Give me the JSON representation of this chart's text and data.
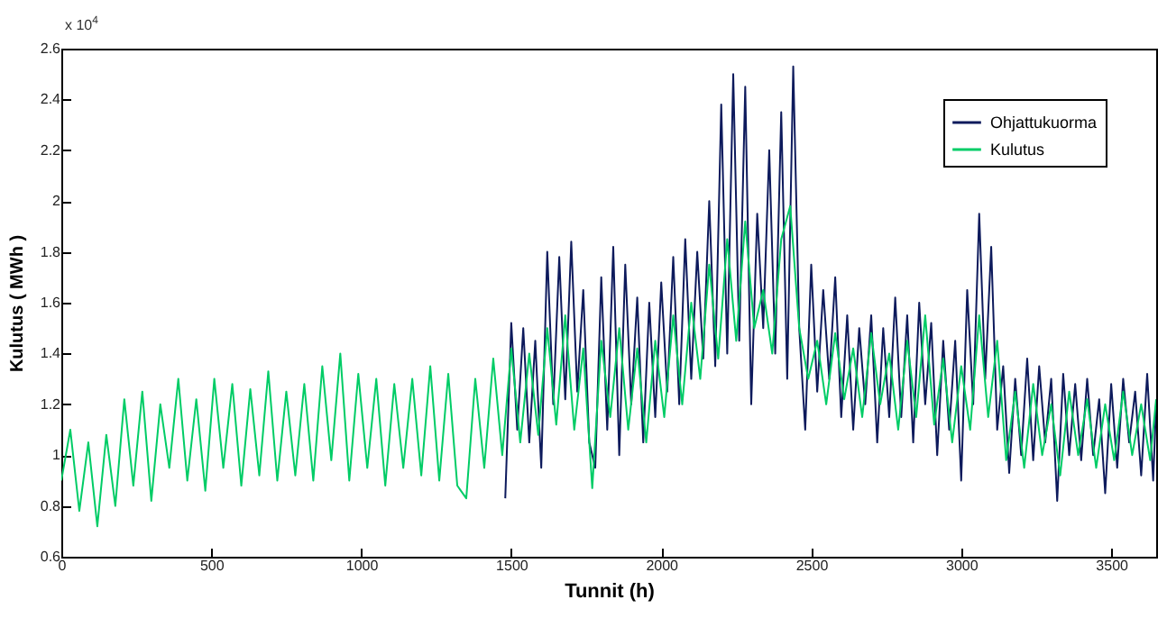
{
  "chart_data": {
    "type": "line",
    "xlabel": "Tunnit (h)",
    "ylabel": "Kulutus ( MWh )",
    "annotations": [
      "x 10$^{4}$"
    ],
    "xlim": [
      0,
      3650
    ],
    "xticks": [
      0,
      500,
      1000,
      1500,
      2000,
      2500,
      3000,
      3500
    ],
    "ylim": [
      0.6,
      2.6
    ],
    "yticks": [
      0.6,
      0.8,
      1,
      1.2,
      1.4,
      1.6,
      1.8,
      2,
      2.2,
      2.4,
      2.6
    ],
    "grid": false,
    "legend": "top right",
    "marker": "none",
    "line_style": "solid",
    "series": [
      {
        "name": "Ohjattukuorma",
        "color": "#0d1a5c",
        "x": [
          1480,
          1500,
          1520,
          1540,
          1560,
          1580,
          1600,
          1620,
          1640,
          1660,
          1680,
          1700,
          1720,
          1740,
          1760,
          1780,
          1800,
          1820,
          1840,
          1860,
          1880,
          1900,
          1920,
          1940,
          1960,
          1980,
          2000,
          2020,
          2040,
          2060,
          2080,
          2100,
          2120,
          2140,
          2160,
          2180,
          2200,
          2220,
          2240,
          2260,
          2280,
          2300,
          2320,
          2340,
          2360,
          2380,
          2400,
          2420,
          2440,
          2460,
          2480,
          2500,
          2520,
          2540,
          2560,
          2580,
          2600,
          2620,
          2640,
          2660,
          2680,
          2700,
          2720,
          2740,
          2760,
          2780,
          2800,
          2820,
          2840,
          2860,
          2880,
          2900,
          2920,
          2940,
          2960,
          2980,
          3000,
          3020,
          3040,
          3060,
          3080,
          3100,
          3120,
          3140,
          3160,
          3180,
          3200,
          3220,
          3240,
          3260,
          3280,
          3300,
          3320,
          3340,
          3360,
          3380,
          3400,
          3420,
          3440,
          3460,
          3480,
          3500,
          3520,
          3540,
          3560,
          3580,
          3600,
          3620,
          3640,
          3650
        ],
        "values": [
          0.83,
          1.52,
          1.1,
          1.5,
          1.05,
          1.45,
          0.95,
          1.8,
          1.2,
          1.78,
          1.22,
          1.84,
          1.25,
          1.65,
          1.05,
          0.95,
          1.7,
          1.1,
          1.82,
          1.0,
          1.75,
          1.2,
          1.62,
          1.05,
          1.6,
          1.15,
          1.68,
          1.25,
          1.78,
          1.2,
          1.85,
          1.3,
          1.8,
          1.38,
          2.0,
          1.35,
          2.38,
          1.4,
          2.5,
          1.45,
          2.45,
          1.2,
          1.95,
          1.5,
          2.2,
          1.4,
          2.35,
          1.3,
          2.53,
          1.5,
          1.1,
          1.75,
          1.25,
          1.65,
          1.3,
          1.7,
          1.15,
          1.55,
          1.1,
          1.5,
          1.2,
          1.55,
          1.05,
          1.5,
          1.15,
          1.62,
          1.15,
          1.55,
          1.05,
          1.6,
          1.2,
          1.52,
          1.0,
          1.45,
          1.1,
          1.45,
          0.9,
          1.65,
          1.2,
          1.95,
          1.3,
          1.82,
          1.1,
          1.35,
          0.93,
          1.3,
          1.0,
          1.38,
          0.98,
          1.35,
          1.05,
          1.3,
          0.82,
          1.32,
          1.0,
          1.28,
          0.98,
          1.3,
          1.0,
          1.22,
          0.85,
          1.28,
          0.95,
          1.3,
          1.05,
          1.25,
          0.92,
          1.32,
          0.9,
          1.2
        ]
      },
      {
        "name": "Kulutus",
        "color": "#00cc66",
        "x": [
          0,
          30,
          60,
          90,
          120,
          150,
          180,
          210,
          240,
          270,
          300,
          330,
          360,
          390,
          420,
          450,
          480,
          510,
          540,
          570,
          600,
          630,
          660,
          690,
          720,
          750,
          780,
          810,
          840,
          870,
          900,
          930,
          960,
          990,
          1020,
          1050,
          1080,
          1110,
          1140,
          1170,
          1200,
          1230,
          1260,
          1290,
          1320,
          1350,
          1380,
          1410,
          1440,
          1470,
          1500,
          1530,
          1560,
          1590,
          1620,
          1650,
          1680,
          1710,
          1740,
          1770,
          1800,
          1830,
          1860,
          1890,
          1920,
          1950,
          1980,
          2010,
          2040,
          2070,
          2100,
          2130,
          2160,
          2190,
          2220,
          2250,
          2280,
          2310,
          2340,
          2370,
          2400,
          2430,
          2460,
          2490,
          2520,
          2550,
          2580,
          2610,
          2640,
          2670,
          2700,
          2730,
          2760,
          2790,
          2820,
          2850,
          2880,
          2910,
          2940,
          2970,
          3000,
          3030,
          3060,
          3090,
          3120,
          3150,
          3180,
          3210,
          3240,
          3270,
          3300,
          3330,
          3360,
          3390,
          3420,
          3450,
          3480,
          3510,
          3540,
          3570,
          3600,
          3630,
          3650
        ],
        "values": [
          0.9,
          1.1,
          0.78,
          1.05,
          0.72,
          1.08,
          0.8,
          1.22,
          0.88,
          1.25,
          0.82,
          1.2,
          0.95,
          1.3,
          0.9,
          1.22,
          0.86,
          1.3,
          0.95,
          1.28,
          0.88,
          1.26,
          0.92,
          1.33,
          0.9,
          1.25,
          0.92,
          1.28,
          0.9,
          1.35,
          0.98,
          1.4,
          0.9,
          1.32,
          0.95,
          1.3,
          0.88,
          1.28,
          0.95,
          1.3,
          0.92,
          1.35,
          0.9,
          1.32,
          0.88,
          0.83,
          1.3,
          0.95,
          1.38,
          1.0,
          1.42,
          1.05,
          1.4,
          1.08,
          1.5,
          1.12,
          1.55,
          1.1,
          1.42,
          0.87,
          1.45,
          1.15,
          1.5,
          1.1,
          1.42,
          1.05,
          1.45,
          1.15,
          1.55,
          1.2,
          1.6,
          1.3,
          1.75,
          1.38,
          1.85,
          1.45,
          1.92,
          1.5,
          1.65,
          1.4,
          1.85,
          1.98,
          1.5,
          1.3,
          1.45,
          1.2,
          1.48,
          1.22,
          1.42,
          1.15,
          1.48,
          1.2,
          1.4,
          1.1,
          1.45,
          1.15,
          1.55,
          1.12,
          1.38,
          1.05,
          1.35,
          1.1,
          1.55,
          1.15,
          1.45,
          0.98,
          1.25,
          0.95,
          1.28,
          1.0,
          1.2,
          0.92,
          1.25,
          1.0,
          1.22,
          0.95,
          1.2,
          0.98,
          1.25,
          1.0,
          1.2,
          0.98,
          1.22
        ]
      }
    ]
  }
}
